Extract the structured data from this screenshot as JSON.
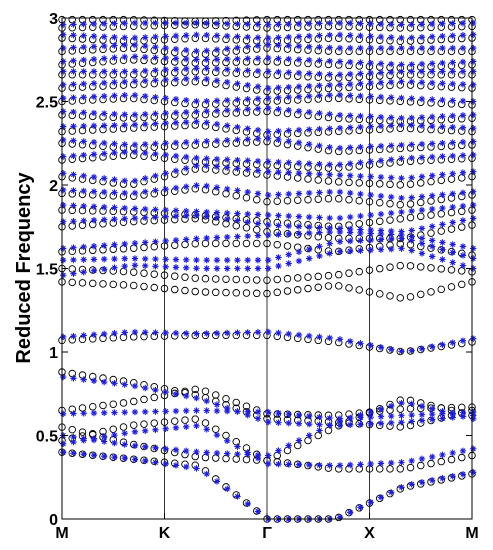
{
  "chart_data": {
    "type": "scatter",
    "title": "",
    "ylabel": "Reduced Frequency",
    "xlabel": "",
    "ylim": [
      0,
      3
    ],
    "y_ticks": [
      "0",
      "0.5",
      "1",
      "1.5",
      "2",
      "2.5",
      "3"
    ],
    "x_ticks": [
      "M",
      "K",
      "Γ",
      "X",
      "M"
    ],
    "x_tick_values": [
      0,
      1,
      2,
      3,
      4
    ],
    "grid": false,
    "colors": {
      "circles": "#000000",
      "stars": "#1f1fd6"
    },
    "series": [
      {
        "marker": "circle",
        "color": "#000000",
        "bands": [
          [
            0.4,
            0.36,
            0.32,
            0.0,
            0.0,
            0.19,
            0.27
          ],
          [
            0.47,
            0.56,
            0.6,
            0.35,
            0.3,
            0.3,
            0.38
          ],
          [
            0.55,
            0.45,
            0.37,
            0.35,
            0.55,
            0.72,
            0.62
          ],
          [
            0.65,
            0.7,
            0.78,
            0.63,
            0.62,
            0.66,
            0.67
          ],
          [
            0.88,
            0.82,
            0.74,
            0.6,
            0.58,
            0.55,
            0.65
          ],
          [
            1.07,
            1.09,
            1.1,
            1.1,
            1.06,
            1.0,
            1.06
          ],
          [
            1.42,
            1.4,
            1.36,
            1.35,
            1.4,
            1.32,
            1.42
          ],
          [
            1.5,
            1.48,
            1.44,
            1.43,
            1.46,
            1.52,
            1.48
          ],
          [
            1.6,
            1.62,
            1.65,
            1.65,
            1.6,
            1.65,
            1.58
          ],
          [
            1.75,
            1.78,
            1.8,
            1.72,
            1.68,
            1.68,
            1.76
          ],
          [
            1.85,
            1.84,
            1.82,
            1.78,
            1.75,
            1.8,
            1.85
          ],
          [
            1.95,
            1.93,
            1.98,
            1.9,
            1.92,
            1.88,
            1.94
          ],
          [
            2.05,
            2.0,
            2.1,
            2.06,
            2.02,
            2.0,
            2.05
          ],
          [
            2.15,
            2.18,
            2.14,
            2.12,
            2.1,
            2.14,
            2.16
          ],
          [
            2.25,
            2.22,
            2.24,
            2.26,
            2.2,
            2.22,
            2.24
          ],
          [
            2.32,
            2.34,
            2.36,
            2.3,
            2.32,
            2.34,
            2.32
          ],
          [
            2.42,
            2.4,
            2.42,
            2.44,
            2.4,
            2.38,
            2.4
          ],
          [
            2.5,
            2.52,
            2.48,
            2.5,
            2.52,
            2.5,
            2.48
          ],
          [
            2.58,
            2.6,
            2.62,
            2.56,
            2.58,
            2.6,
            2.58
          ],
          [
            2.66,
            2.66,
            2.68,
            2.66,
            2.64,
            2.66,
            2.66
          ],
          [
            2.72,
            2.75,
            2.73,
            2.74,
            2.72,
            2.7,
            2.72
          ],
          [
            2.8,
            2.82,
            2.78,
            2.82,
            2.8,
            2.8,
            2.8
          ],
          [
            2.88,
            2.86,
            2.88,
            2.86,
            2.88,
            2.86,
            2.88
          ],
          [
            2.94,
            2.95,
            2.96,
            2.94,
            2.95,
            2.94,
            2.95
          ],
          [
            2.99,
            2.99,
            2.98,
            2.99,
            2.99,
            2.99,
            2.99
          ]
        ]
      },
      {
        "marker": "star",
        "color": "#1f1fd6",
        "bands": [
          [
            0.4,
            0.36,
            0.3,
            0.0,
            0.0,
            0.2,
            0.28
          ],
          [
            0.45,
            0.52,
            0.56,
            0.33,
            0.32,
            0.34,
            0.42
          ],
          [
            0.5,
            0.44,
            0.4,
            0.38,
            0.58,
            0.7,
            0.6
          ],
          [
            0.63,
            0.64,
            0.65,
            0.64,
            0.6,
            0.62,
            0.64
          ],
          [
            0.85,
            0.8,
            0.72,
            0.58,
            0.56,
            0.58,
            0.62
          ],
          [
            1.09,
            1.12,
            1.11,
            1.12,
            1.08,
            1.0,
            1.08
          ],
          [
            1.46,
            1.52,
            1.5,
            1.5,
            1.6,
            1.62,
            1.5
          ],
          [
            1.55,
            1.56,
            1.55,
            1.55,
            1.66,
            1.68,
            1.56
          ],
          [
            1.62,
            1.65,
            1.68,
            1.7,
            1.72,
            1.7,
            1.62
          ],
          [
            1.78,
            1.8,
            1.82,
            1.76,
            1.74,
            1.72,
            1.8
          ],
          [
            1.88,
            1.86,
            1.84,
            1.82,
            1.8,
            1.84,
            1.88
          ],
          [
            1.97,
            1.95,
            2.0,
            1.94,
            1.96,
            1.92,
            1.96
          ],
          [
            2.07,
            2.02,
            2.12,
            2.08,
            2.06,
            2.04,
            2.08
          ],
          [
            2.17,
            2.2,
            2.16,
            2.14,
            2.12,
            2.16,
            2.18
          ],
          [
            2.27,
            2.24,
            2.26,
            2.28,
            2.22,
            2.24,
            2.26
          ],
          [
            2.35,
            2.36,
            2.38,
            2.32,
            2.34,
            2.36,
            2.34
          ],
          [
            2.44,
            2.42,
            2.44,
            2.46,
            2.42,
            2.4,
            2.42
          ],
          [
            2.52,
            2.54,
            2.5,
            2.52,
            2.54,
            2.52,
            2.5
          ],
          [
            2.6,
            2.62,
            2.64,
            2.58,
            2.6,
            2.62,
            2.6
          ],
          [
            2.68,
            2.68,
            2.7,
            2.68,
            2.66,
            2.68,
            2.68
          ],
          [
            2.74,
            2.77,
            2.75,
            2.76,
            2.74,
            2.72,
            2.74
          ],
          [
            2.82,
            2.84,
            2.8,
            2.84,
            2.82,
            2.82,
            2.82
          ],
          [
            2.9,
            2.88,
            2.9,
            2.88,
            2.9,
            2.88,
            2.9
          ],
          [
            2.96,
            2.97,
            2.97,
            2.96,
            2.97,
            2.96,
            2.97
          ]
        ]
      }
    ]
  }
}
